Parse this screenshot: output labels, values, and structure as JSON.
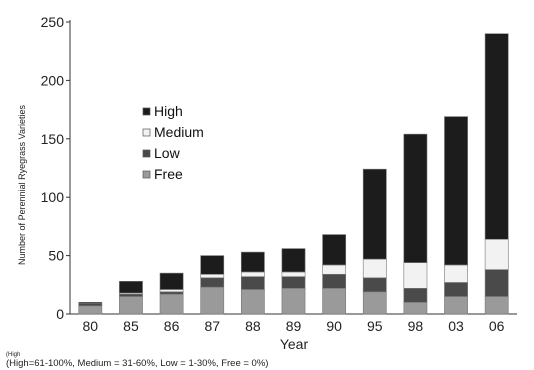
{
  "chart_data": {
    "type": "bar",
    "stacked": true,
    "xlabel": "Year",
    "ylabel": "Number of Perennial Ryegrass Varieties",
    "ylim": [
      0,
      250
    ],
    "yticks": [
      0,
      50,
      100,
      150,
      200,
      250
    ],
    "grid": false,
    "legend_position": "left-middle",
    "categories": [
      "80",
      "85",
      "86",
      "87",
      "88",
      "89",
      "90",
      "95",
      "98",
      "03",
      "06"
    ],
    "series": [
      {
        "name": "Free",
        "color": "#9a9a9a",
        "values": [
          7,
          15,
          17,
          23,
          21,
          22,
          22,
          19,
          10,
          15,
          15
        ]
      },
      {
        "name": "Low",
        "color": "#4a4a4a",
        "values": [
          2,
          2,
          2,
          8,
          11,
          10,
          12,
          12,
          12,
          12,
          23
        ]
      },
      {
        "name": "Medium",
        "color": "#f2f2f2",
        "values": [
          0,
          1,
          2,
          3,
          4,
          4,
          8,
          16,
          22,
          15,
          26
        ]
      },
      {
        "name": "High",
        "color": "#1c1c1c",
        "values": [
          1,
          10,
          14,
          16,
          17,
          20,
          26,
          77,
          110,
          127,
          176
        ]
      }
    ],
    "footnote_line1": "(High",
    "footnote_line2": "(High=61-100%, Medium = 31-60%, Low = 1-30%, Free = 0%)"
  }
}
